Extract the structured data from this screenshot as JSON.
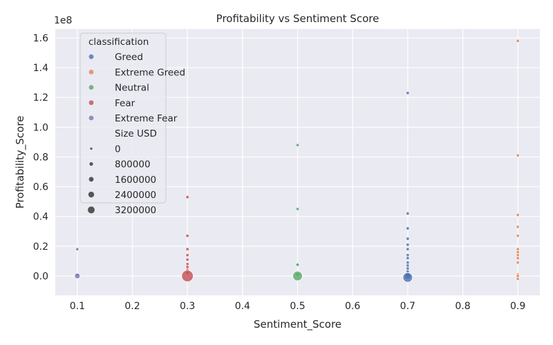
{
  "chart_data": {
    "type": "scatter",
    "title": "Profitability vs Sentiment Score",
    "xlabel": "Sentiment_Score",
    "ylabel": "Profitability_Score",
    "y_scale_note": "1e8",
    "xlim": [
      0.06,
      0.94
    ],
    "ylim": [
      -0.13,
      1.66
    ],
    "x_ticks": [
      0.1,
      0.2,
      0.3,
      0.4,
      0.5,
      0.6,
      0.7,
      0.8,
      0.9
    ],
    "x_tick_labels": [
      "0.1",
      "0.2",
      "0.3",
      "0.4",
      "0.5",
      "0.6",
      "0.7",
      "0.8",
      "0.9"
    ],
    "y_ticks": [
      0.0,
      0.2,
      0.4,
      0.6,
      0.8,
      1.0,
      1.2,
      1.4,
      1.6
    ],
    "y_tick_labels": [
      "0.0",
      "0.2",
      "0.4",
      "0.6",
      "0.8",
      "1.0",
      "1.2",
      "1.4",
      "1.6"
    ],
    "grid": true,
    "legend_position": "top-left",
    "hue_title": "classification",
    "size_title": "Size USD",
    "series": [
      {
        "name": "Greed",
        "color": "#4c72b0",
        "points": [
          {
            "x": 0.7,
            "y": 1.23,
            "size": 8000
          },
          {
            "x": 0.7,
            "y": 0.42,
            "size": 8000
          },
          {
            "x": 0.7,
            "y": 0.32,
            "size": 8000
          },
          {
            "x": 0.7,
            "y": 0.25,
            "size": 8000
          },
          {
            "x": 0.7,
            "y": 0.21,
            "size": 8000
          },
          {
            "x": 0.7,
            "y": 0.18,
            "size": 8000
          },
          {
            "x": 0.7,
            "y": 0.14,
            "size": 8000
          },
          {
            "x": 0.7,
            "y": 0.12,
            "size": 8000
          },
          {
            "x": 0.7,
            "y": 0.09,
            "size": 8000
          },
          {
            "x": 0.7,
            "y": 0.07,
            "size": 8000
          },
          {
            "x": 0.7,
            "y": 0.05,
            "size": 8000
          },
          {
            "x": 0.7,
            "y": 0.03,
            "size": 8000
          },
          {
            "x": 0.7,
            "y": 0.01,
            "size": 8000
          },
          {
            "x": 0.7,
            "y": 0.0,
            "size": 400000
          },
          {
            "x": 0.7,
            "y": -0.01,
            "size": 1200000
          }
        ]
      },
      {
        "name": "Extreme Greed",
        "color": "#dd8452",
        "points": [
          {
            "x": 0.9,
            "y": 1.58,
            "size": 8000
          },
          {
            "x": 0.9,
            "y": 0.81,
            "size": 8000
          },
          {
            "x": 0.9,
            "y": 0.41,
            "size": 8000
          },
          {
            "x": 0.9,
            "y": 0.33,
            "size": 8000
          },
          {
            "x": 0.9,
            "y": 0.27,
            "size": 8000
          },
          {
            "x": 0.9,
            "y": 0.18,
            "size": 8000
          },
          {
            "x": 0.9,
            "y": 0.16,
            "size": 8000
          },
          {
            "x": 0.9,
            "y": 0.14,
            "size": 8000
          },
          {
            "x": 0.9,
            "y": 0.12,
            "size": 8000
          },
          {
            "x": 0.9,
            "y": 0.09,
            "size": 8000
          },
          {
            "x": 0.9,
            "y": 0.01,
            "size": 8000
          },
          {
            "x": 0.9,
            "y": 0.0,
            "size": 8000
          },
          {
            "x": 0.9,
            "y": -0.02,
            "size": 8000
          }
        ]
      },
      {
        "name": "Neutral",
        "color": "#55a868",
        "points": [
          {
            "x": 0.5,
            "y": 0.88,
            "size": 8000
          },
          {
            "x": 0.5,
            "y": 0.45,
            "size": 8000
          },
          {
            "x": 0.5,
            "y": 0.08,
            "size": 8000
          },
          {
            "x": 0.5,
            "y": 0.075,
            "size": 8000
          },
          {
            "x": 0.5,
            "y": 0.01,
            "size": 8000
          },
          {
            "x": 0.5,
            "y": 0.0,
            "size": 1200000
          }
        ]
      },
      {
        "name": "Fear",
        "color": "#c44e52",
        "points": [
          {
            "x": 0.3,
            "y": 0.53,
            "size": 8000
          },
          {
            "x": 0.3,
            "y": 0.27,
            "size": 8000
          },
          {
            "x": 0.3,
            "y": 0.18,
            "size": 8000
          },
          {
            "x": 0.3,
            "y": 0.14,
            "size": 8000
          },
          {
            "x": 0.3,
            "y": 0.11,
            "size": 8000
          },
          {
            "x": 0.3,
            "y": 0.08,
            "size": 8000
          },
          {
            "x": 0.3,
            "y": 0.06,
            "size": 8000
          },
          {
            "x": 0.3,
            "y": 0.04,
            "size": 8000
          },
          {
            "x": 0.3,
            "y": 0.02,
            "size": 8000
          },
          {
            "x": 0.3,
            "y": 0.0,
            "size": 2000000
          }
        ]
      },
      {
        "name": "Extreme Fear",
        "color": "#8172b3",
        "points": [
          {
            "x": 0.1,
            "y": 0.18,
            "size": 8000
          },
          {
            "x": 0.1,
            "y": 0.01,
            "size": 8000
          },
          {
            "x": 0.1,
            "y": 0.0,
            "size": 200000
          }
        ]
      }
    ],
    "size_legend": [
      {
        "label": "0",
        "value": 0
      },
      {
        "label": "800000",
        "value": 800000
      },
      {
        "label": "1600000",
        "value": 1600000
      },
      {
        "label": "2400000",
        "value": 2400000
      },
      {
        "label": "3200000",
        "value": 3200000
      }
    ],
    "colors": {
      "plot_background": "#eaeaf2",
      "grid": "#ffffff",
      "text": "#262626"
    }
  }
}
